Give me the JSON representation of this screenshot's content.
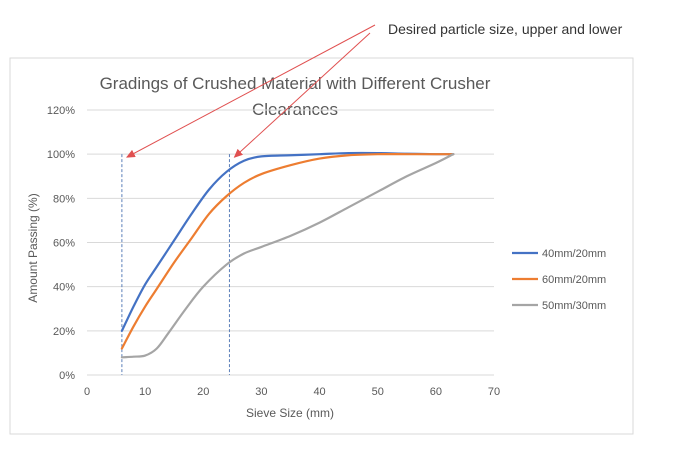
{
  "annotation": "Desired particle size, upper and lower",
  "colors": {
    "annotation_arrow": "#e05050",
    "gridline": "#d9d9d9",
    "marker_line": "#5b7fb8",
    "frame": "#d9d9d9"
  },
  "chart_data": {
    "type": "line",
    "title_line1": "Gradings of Crushed Material with Different Crusher",
    "title_line2": "Clearances",
    "xlabel": "Sieve Size (mm)",
    "ylabel": "Amount Passing (%)",
    "xlim": [
      0,
      70
    ],
    "ylim": [
      0,
      120
    ],
    "x_ticks": [
      "0",
      "10",
      "20",
      "30",
      "40",
      "50",
      "60",
      "70"
    ],
    "y_ticks": [
      "0%",
      "20%",
      "40%",
      "60%",
      "80%",
      "100%",
      "120%"
    ],
    "grid": true,
    "legend_position": "right",
    "series": [
      {
        "name": "40mm/20mm",
        "color": "#4472c4",
        "x": [
          6,
          8,
          10,
          12,
          15,
          18,
          21,
          24,
          27,
          30,
          35,
          40,
          45,
          50,
          55,
          60,
          63
        ],
        "y": [
          20,
          31,
          41,
          49,
          61,
          73,
          84,
          92,
          97,
          99,
          99.5,
          100,
          100.5,
          100.5,
          100.2,
          100,
          100
        ]
      },
      {
        "name": "60mm/20mm",
        "color": "#ed7d31",
        "x": [
          6,
          8,
          10,
          12,
          15,
          18,
          21,
          24,
          27,
          30,
          35,
          40,
          45,
          50,
          55,
          60,
          63
        ],
        "y": [
          12,
          22,
          31,
          39,
          51,
          62,
          73,
          81,
          87,
          91,
          95,
          98,
          99.5,
          100,
          100,
          100,
          100
        ]
      },
      {
        "name": "50mm/30mm",
        "color": "#a5a5a5",
        "x": [
          6,
          8,
          10,
          12,
          14,
          17,
          20,
          24,
          27,
          30,
          35,
          40,
          45,
          50,
          55,
          60,
          63
        ],
        "y": [
          8,
          8.3,
          8.8,
          12,
          19,
          30,
          40,
          50,
          55,
          58,
          63,
          69,
          76,
          83,
          90,
          96,
          100
        ]
      }
    ],
    "reference_lines": [
      {
        "x": 6,
        "y_top": 100
      },
      {
        "x": 24.5,
        "y_top": 100
      }
    ]
  }
}
